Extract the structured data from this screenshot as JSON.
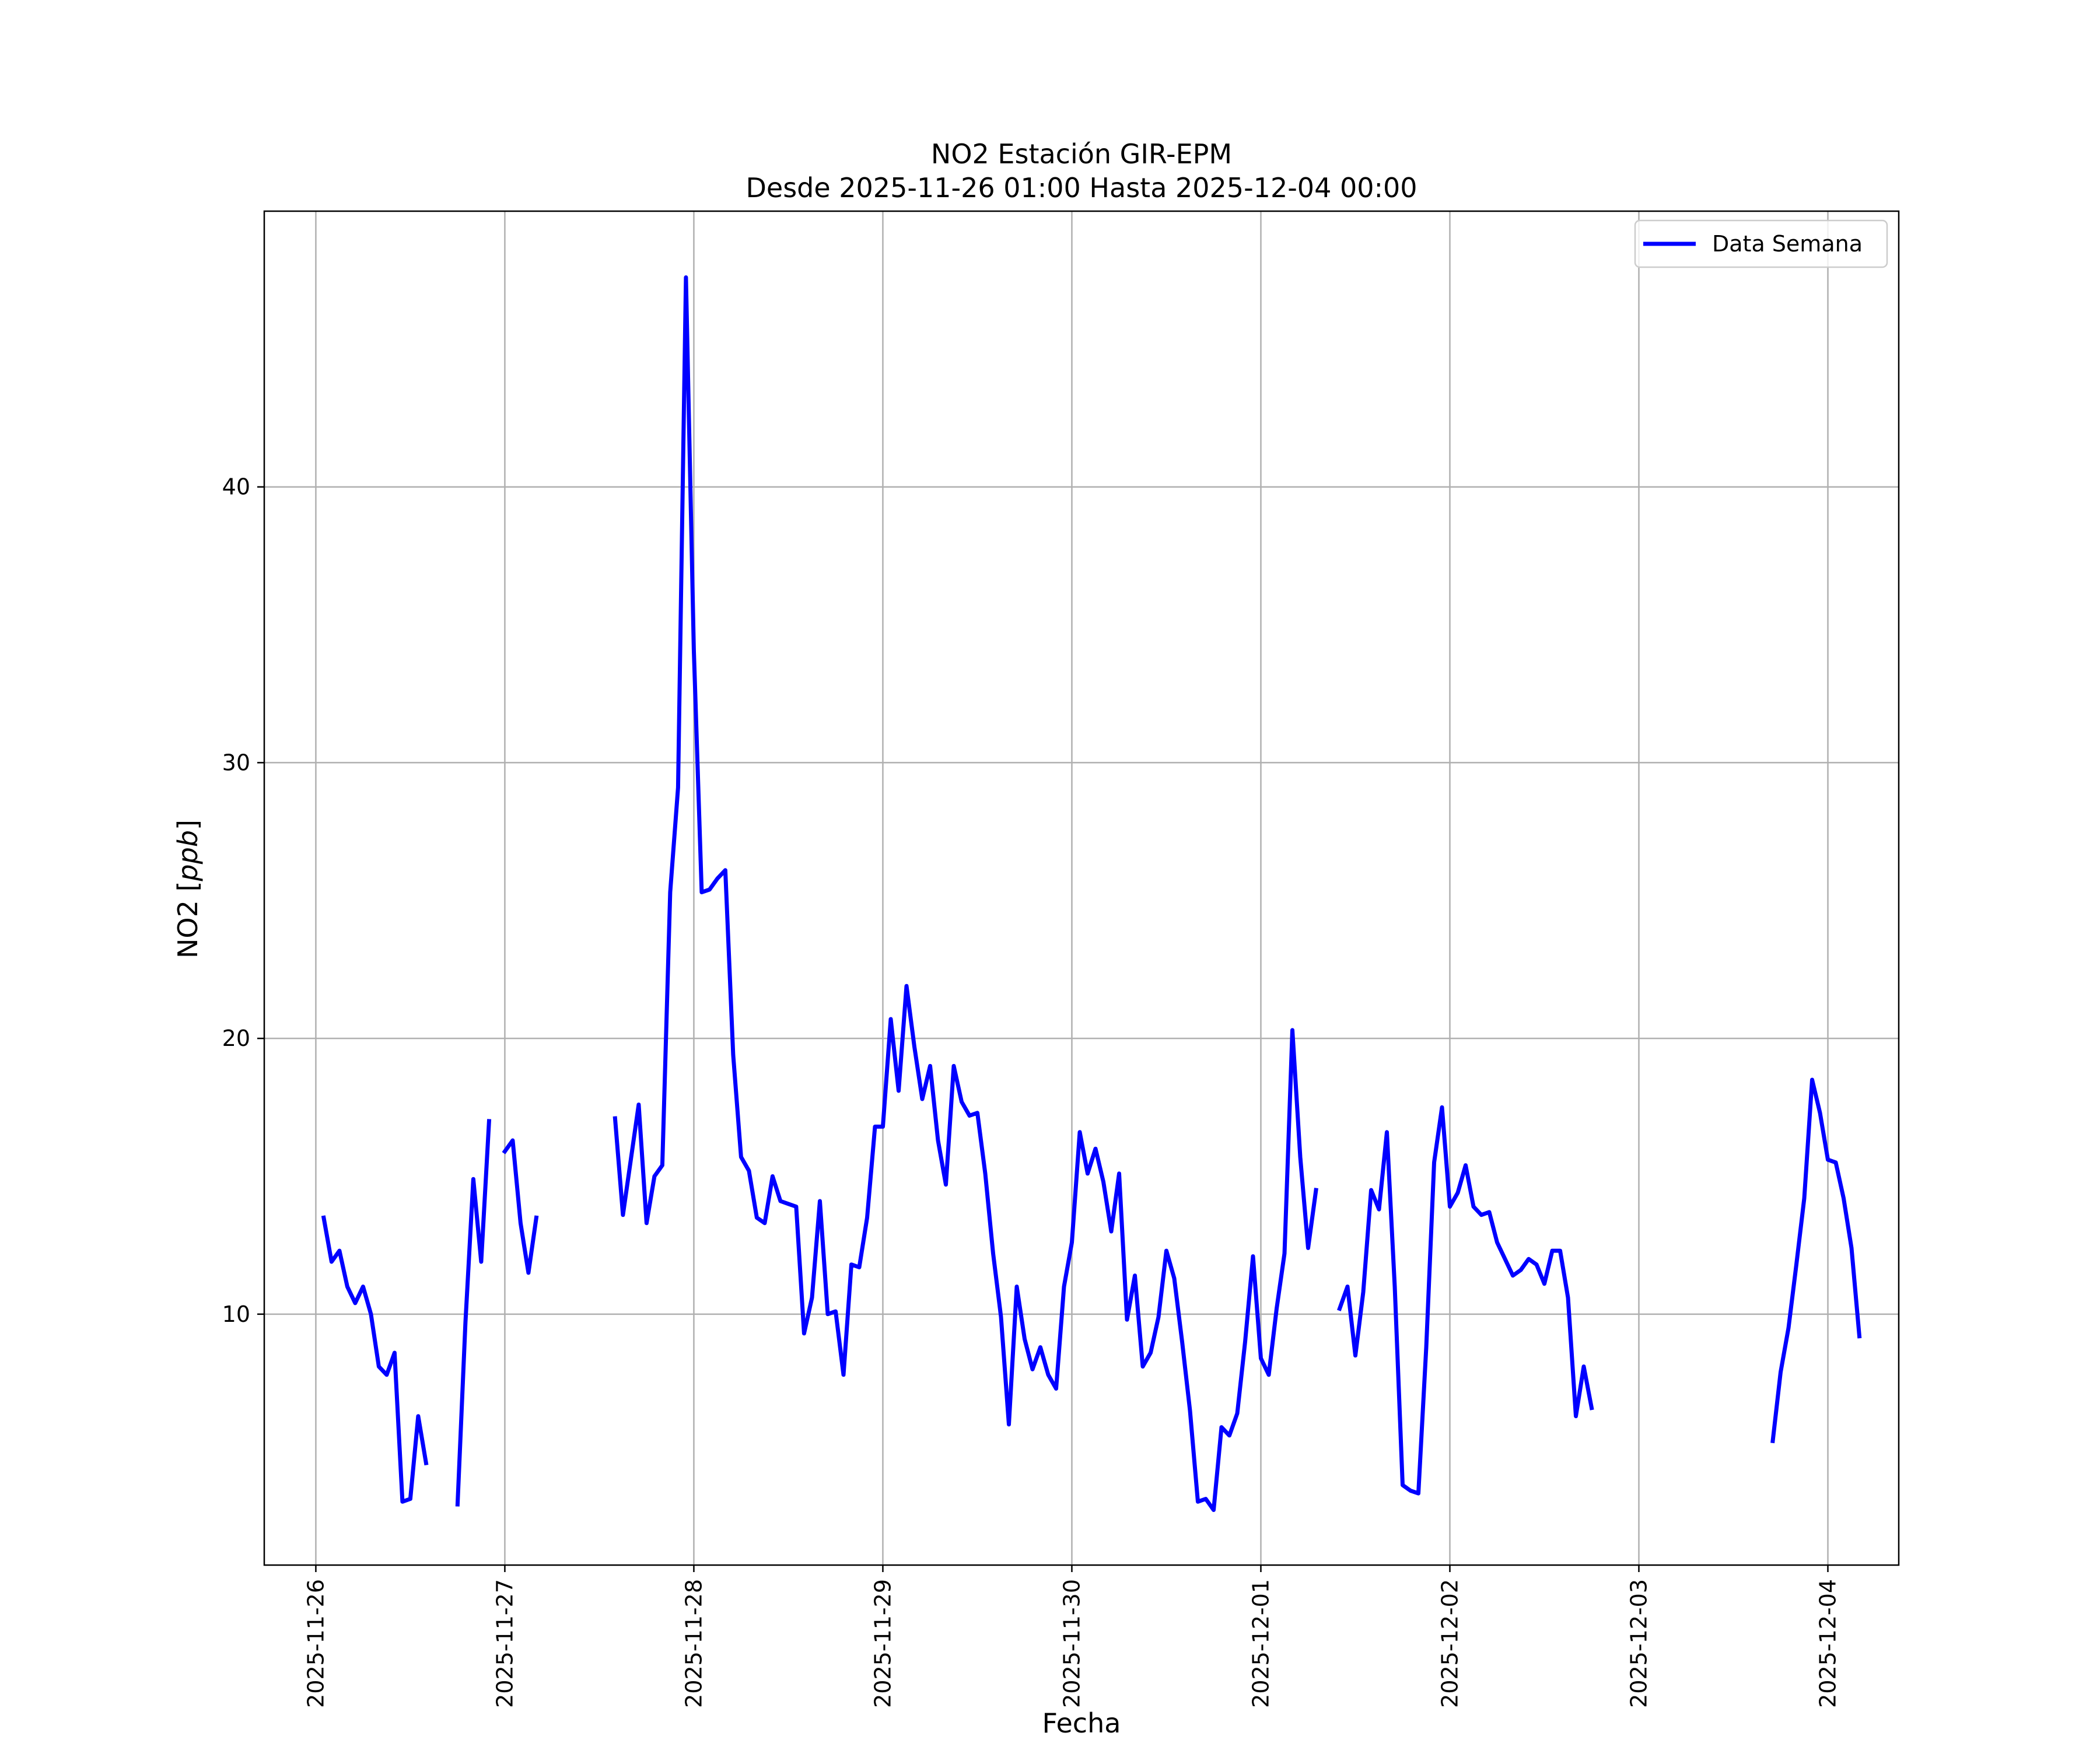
{
  "chart_data": {
    "type": "line",
    "title": "NO2 Estación GIR-EPM",
    "subtitle": "Desde 2025-11-26 01:00 Hasta 2025-12-04 00:00",
    "xlabel": "Fecha",
    "ylabel_prefix": "NO2 [",
    "ylabel_unit": "ppb",
    "ylabel_suffix": "]",
    "x_ticks": [
      "2025-11-26",
      "2025-11-27",
      "2025-11-28",
      "2025-11-29",
      "2025-11-30",
      "2025-12-01",
      "2025-12-02",
      "2025-12-03",
      "2025-12-04"
    ],
    "y_ticks": [
      10,
      20,
      30,
      40
    ],
    "xlim": [
      "2025-11-25 17:27",
      "2025-12-04 09:00"
    ],
    "ylim": [
      0.9,
      50
    ],
    "grid": true,
    "legend_position": "top-right",
    "line_color": "#0000ff",
    "series": [
      {
        "name": "Data Semana",
        "start": "2025-11-26 01:00",
        "step_hours": 1,
        "values": [
          13.5,
          11.9,
          12.3,
          11.0,
          10.4,
          11.0,
          10.0,
          8.1,
          7.8,
          8.6,
          3.2,
          3.3,
          6.3,
          4.6,
          null,
          null,
          null,
          3.1,
          9.7,
          14.9,
          11.9,
          17.0,
          null,
          15.9,
          16.3,
          13.3,
          11.5,
          13.5,
          null,
          null,
          null,
          null,
          null,
          null,
          null,
          null,
          null,
          17.1,
          13.6,
          15.6,
          17.6,
          13.3,
          15.0,
          15.4,
          25.3,
          29.1,
          47.6,
          34.1,
          25.3,
          25.4,
          25.8,
          26.1,
          19.4,
          15.7,
          15.2,
          13.5,
          13.3,
          15.0,
          14.1,
          14.0,
          13.9,
          9.3,
          10.6,
          14.1,
          10.0,
          10.1,
          7.8,
          11.8,
          11.7,
          13.5,
          16.8,
          16.8,
          20.7,
          18.1,
          21.9,
          19.7,
          17.8,
          19.0,
          16.3,
          14.7,
          19.0,
          17.7,
          17.2,
          17.3,
          15.1,
          12.2,
          9.9,
          6.0,
          11.0,
          9.1,
          8.0,
          8.8,
          7.8,
          7.3,
          11.0,
          12.6,
          16.6,
          15.1,
          16.0,
          14.8,
          13.0,
          15.1,
          9.8,
          11.4,
          8.1,
          8.6,
          9.9,
          12.3,
          11.3,
          9.0,
          6.5,
          3.2,
          3.3,
          2.9,
          5.9,
          5.6,
          6.4,
          9.0,
          12.1,
          8.4,
          7.8,
          10.2,
          12.2,
          20.3,
          15.7,
          12.4,
          14.5,
          null,
          null,
          10.2,
          11.0,
          8.5,
          10.8,
          14.5,
          13.8,
          16.6,
          11.0,
          3.8,
          3.6,
          3.5,
          8.8,
          15.5,
          17.5,
          13.9,
          14.4,
          15.4,
          13.9,
          13.6,
          13.7,
          12.6,
          12.0,
          11.4,
          11.6,
          12.0,
          11.8,
          11.1,
          12.3,
          12.3,
          10.6,
          6.3,
          8.1,
          6.6,
          null,
          null,
          null,
          null,
          null,
          null,
          null,
          null,
          null,
          null,
          null,
          null,
          null,
          null,
          null,
          null,
          null,
          null,
          null,
          null,
          null,
          null,
          5.4,
          7.9,
          9.5,
          11.8,
          14.2,
          18.5,
          17.3,
          15.6,
          15.5,
          14.2,
          12.4,
          9.2
        ]
      }
    ]
  }
}
